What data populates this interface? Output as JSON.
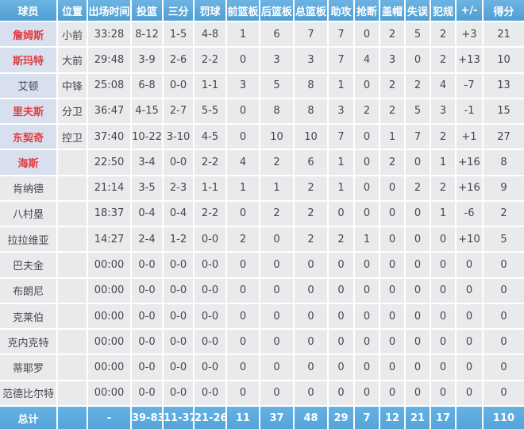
{
  "header": {
    "columns": [
      "球员",
      "位置",
      "出场时间",
      "投篮",
      "三分",
      "罚球",
      "前篮板",
      "后篮板",
      "总篮板",
      "助攻",
      "抢断",
      "盖帽",
      "失误",
      "犯规",
      "+/-",
      "得分"
    ]
  },
  "rows": [
    {
      "player": "詹姆斯",
      "red": true,
      "highlight": true,
      "position": "小前",
      "stats": [
        "33:28",
        "8-12",
        "1-5",
        "4-8",
        "1",
        "6",
        "7",
        "7",
        "0",
        "2",
        "5",
        "2",
        "+3",
        "21"
      ]
    },
    {
      "player": "斯玛特",
      "red": true,
      "highlight": true,
      "position": "大前",
      "stats": [
        "29:48",
        "3-9",
        "2-6",
        "2-2",
        "0",
        "3",
        "3",
        "7",
        "4",
        "3",
        "0",
        "2",
        "+13",
        "10"
      ]
    },
    {
      "player": "艾顿",
      "red": false,
      "highlight": true,
      "position": "中锋",
      "stats": [
        "25:08",
        "6-8",
        "0-0",
        "1-1",
        "3",
        "5",
        "8",
        "1",
        "0",
        "2",
        "2",
        "4",
        "-7",
        "13"
      ]
    },
    {
      "player": "里夫斯",
      "red": true,
      "highlight": true,
      "position": "分卫",
      "stats": [
        "36:47",
        "4-15",
        "2-7",
        "5-5",
        "0",
        "8",
        "8",
        "3",
        "2",
        "2",
        "5",
        "3",
        "-1",
        "15"
      ]
    },
    {
      "player": "东契奇",
      "red": true,
      "highlight": true,
      "position": "控卫",
      "stats": [
        "37:40",
        "10-22",
        "3-10",
        "4-5",
        "0",
        "10",
        "10",
        "7",
        "0",
        "1",
        "7",
        "2",
        "+1",
        "27"
      ]
    },
    {
      "player": "海斯",
      "red": true,
      "highlight": true,
      "position": "",
      "stats": [
        "22:50",
        "3-4",
        "0-0",
        "2-2",
        "4",
        "2",
        "6",
        "1",
        "0",
        "2",
        "0",
        "1",
        "+16",
        "8"
      ]
    },
    {
      "player": "肯纳德",
      "red": false,
      "highlight": false,
      "position": "",
      "stats": [
        "21:14",
        "3-5",
        "2-3",
        "1-1",
        "1",
        "1",
        "2",
        "1",
        "0",
        "0",
        "2",
        "2",
        "+16",
        "9"
      ]
    },
    {
      "player": "八村塁",
      "red": false,
      "highlight": false,
      "position": "",
      "stats": [
        "18:37",
        "0-4",
        "0-4",
        "2-2",
        "0",
        "2",
        "2",
        "0",
        "0",
        "0",
        "0",
        "1",
        "-6",
        "2"
      ]
    },
    {
      "player": "拉拉维亚",
      "red": false,
      "highlight": false,
      "position": "",
      "stats": [
        "14:27",
        "2-4",
        "1-2",
        "0-0",
        "2",
        "0",
        "2",
        "2",
        "1",
        "0",
        "0",
        "0",
        "+10",
        "5"
      ]
    },
    {
      "player": "巴夫金",
      "red": false,
      "highlight": false,
      "position": "",
      "stats": [
        "00:00",
        "0-0",
        "0-0",
        "0-0",
        "0",
        "0",
        "0",
        "0",
        "0",
        "0",
        "0",
        "0",
        "0",
        "0"
      ]
    },
    {
      "player": "布朗尼",
      "red": false,
      "highlight": false,
      "position": "",
      "stats": [
        "00:00",
        "0-0",
        "0-0",
        "0-0",
        "0",
        "0",
        "0",
        "0",
        "0",
        "0",
        "0",
        "0",
        "0",
        "0"
      ]
    },
    {
      "player": "克莱伯",
      "red": false,
      "highlight": false,
      "position": "",
      "stats": [
        "00:00",
        "0-0",
        "0-0",
        "0-0",
        "0",
        "0",
        "0",
        "0",
        "0",
        "0",
        "0",
        "0",
        "0",
        "0"
      ]
    },
    {
      "player": "克内克特",
      "red": false,
      "highlight": false,
      "position": "",
      "stats": [
        "00:00",
        "0-0",
        "0-0",
        "0-0",
        "0",
        "0",
        "0",
        "0",
        "0",
        "0",
        "0",
        "0",
        "0",
        "0"
      ]
    },
    {
      "player": "蒂耶罗",
      "red": false,
      "highlight": false,
      "position": "",
      "stats": [
        "00:00",
        "0-0",
        "0-0",
        "0-0",
        "0",
        "0",
        "0",
        "0",
        "0",
        "0",
        "0",
        "0",
        "0",
        "0"
      ]
    },
    {
      "player": "范德比尔特",
      "red": false,
      "highlight": false,
      "position": "",
      "stats": [
        "00:00",
        "0-0",
        "0-0",
        "0-0",
        "0",
        "0",
        "0",
        "0",
        "0",
        "0",
        "0",
        "0",
        "0",
        "0"
      ]
    }
  ],
  "footer": {
    "label": "总计",
    "position": "",
    "stats": [
      "-",
      "39-83",
      "11-37",
      "21-26",
      "11",
      "37",
      "48",
      "29",
      "7",
      "12",
      "21",
      "17",
      "",
      "110"
    ]
  },
  "colors": {
    "header_bg": "#54a7de",
    "footer_bg": "#57aae1",
    "row_bg": "#e9eaec",
    "highlight_bg": "#d8dfee",
    "red_text": "#e23b3f",
    "body_text": "#45474b",
    "header_text": "#ffffff",
    "grid": "#ffffff"
  }
}
